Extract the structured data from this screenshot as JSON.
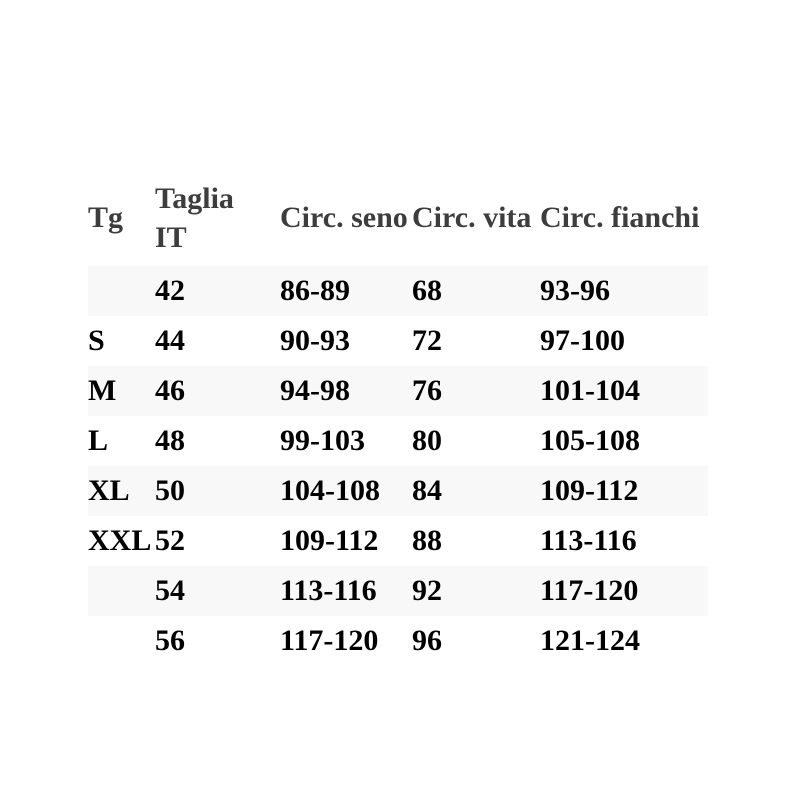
{
  "table": {
    "header": {
      "tg": "Tg",
      "taglia_line1": "Taglia",
      "taglia_line2": "IT",
      "seno": "Circ. seno",
      "vita": "Circ. vita",
      "fianchi": "Circ. fianchi"
    },
    "rows": [
      {
        "tg": "",
        "taglia_it": "42",
        "seno": "86-89",
        "vita": "68",
        "fianchi": "93-96"
      },
      {
        "tg": "S",
        "taglia_it": "44",
        "seno": "90-93",
        "vita": "72",
        "fianchi": "97-100"
      },
      {
        "tg": "M",
        "taglia_it": "46",
        "seno": "94-98",
        "vita": "76",
        "fianchi": "101-104"
      },
      {
        "tg": "L",
        "taglia_it": "48",
        "seno": "99-103",
        "vita": "80",
        "fianchi": "105-108"
      },
      {
        "tg": "XL",
        "taglia_it": "50",
        "seno": "104-108",
        "vita": "84",
        "fianchi": "109-112"
      },
      {
        "tg": "XXL",
        "taglia_it": "52",
        "seno": "109-112",
        "vita": "88",
        "fianchi": "113-116"
      },
      {
        "tg": "",
        "taglia_it": "54",
        "seno": "113-116",
        "vita": "92",
        "fianchi": "117-120"
      },
      {
        "tg": "",
        "taglia_it": "56",
        "seno": "117-120",
        "vita": "96",
        "fianchi": "121-124"
      }
    ],
    "colors": {
      "header_text": "#3d3d3d",
      "body_text": "#000000",
      "stripe_bg": "#f8f8f8",
      "row_bg": "#ffffff"
    }
  }
}
